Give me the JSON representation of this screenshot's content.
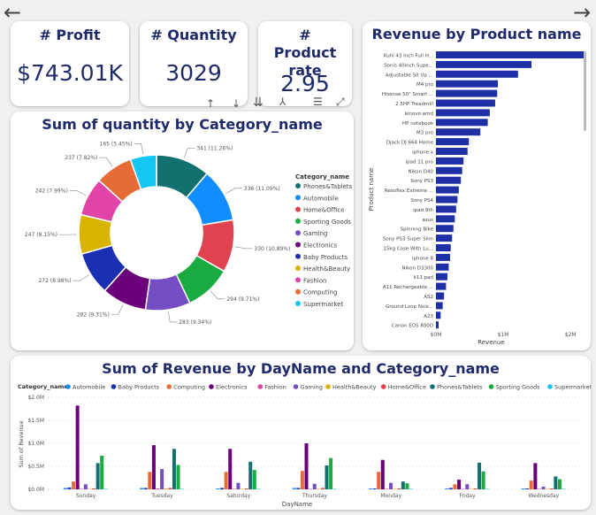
{
  "nav": {
    "back_glyph": "←",
    "forward_glyph": "→"
  },
  "kpis": [
    {
      "title": "# Profit",
      "value": "$743.01K"
    },
    {
      "title": "# Quantity",
      "value": "3029"
    },
    {
      "title": "# Product rate",
      "value": "2.95"
    }
  ],
  "toolbar": {
    "up": "↑",
    "down": "↓",
    "drill": "⇊",
    "expand": "⅄",
    "filter": "☰",
    "focus": "⤢"
  },
  "colors": {
    "Phones&Tablets": "#12706e",
    "Automobile": "#118dff",
    "Home&Office": "#e0434f",
    "Sporting Goods": "#1aab40",
    "Gaming": "#744ec2",
    "Electronics": "#6b007b",
    "Baby Products": "#1b2fb3",
    "Health&Beauty": "#d9b300",
    "Fashion": "#e044a7",
    "Computing": "#e66c37",
    "Supermarket": "#15c6f4",
    "revenue_bar": "#1f2fa6"
  },
  "chart_data": [
    {
      "type": "pie",
      "title": "Sum of quantity by Category_name",
      "legend_title": "Category_name",
      "legend_position": "right",
      "categories": [
        "Phones&Tablets",
        "Automobile",
        "Home&Office",
        "Sporting Goods",
        "Gaming",
        "Electronics",
        "Baby Products",
        "Health&Beauty",
        "Fashion",
        "Computing",
        "Supermarket"
      ],
      "values": [
        341,
        336,
        330,
        294,
        283,
        282,
        272,
        247,
        242,
        237,
        165
      ],
      "labels": [
        "341 (11.26%)",
        "336 (11.09%)",
        "330 (10.89%)",
        "294 (9.71%)",
        "283 (9.34%)",
        "282 (9.31%)",
        "272 (8.98%)",
        "247 (8.15%)",
        "242 (7.99%)",
        "237 (7.82%)",
        "165 (5.45%)"
      ]
    },
    {
      "type": "bar",
      "orientation": "horizontal",
      "title": "Revenue by Product name",
      "xlabel": "Revenue",
      "ylabel": "Product name",
      "xlim": [
        0,
        2300000
      ],
      "xticks": [
        0,
        1000000,
        2000000
      ],
      "xtick_labels": [
        "$0M",
        "$1M",
        "$2M"
      ],
      "categories": [
        "Kuhl 43 Inch Full H...",
        "Sonis 40inch Supe...",
        "Adjustable Sit Up ...",
        "M4 pro",
        "Hisense 50\" Smart ...",
        "2.5HP Treadmill",
        "lenovo amd",
        "HP notebook",
        "M3 pro",
        "Djack DJ 664 Home",
        "iphone x",
        "ipad 11 pro",
        "Nikon D40",
        "Sony PS3",
        "Rexoflex Extreme ...",
        "Sony PS4",
        "ipad 9th",
        "asus",
        "Spinning Bike",
        "Sony PS3 Super Slim",
        "15kg Case With Lu...",
        "iphone 8",
        "Nikon D3300",
        "k11 pad",
        "A11 Rechargeable ...",
        "AS2",
        "Ground Loop Nois...",
        "A23",
        "Canon EOS 800D"
      ],
      "values": [
        2200000,
        1420000,
        1220000,
        920000,
        910000,
        880000,
        800000,
        770000,
        660000,
        490000,
        470000,
        410000,
        390000,
        370000,
        340000,
        320000,
        300000,
        280000,
        260000,
        240000,
        220000,
        210000,
        190000,
        170000,
        150000,
        120000,
        100000,
        70000,
        40000
      ]
    },
    {
      "type": "bar",
      "title": "Sum of Revenue by DayName and Category_name",
      "legend_title": "Category_name",
      "legend_position": "top",
      "xlabel": "DayName",
      "ylabel": "Sum of Revenue",
      "ylim": [
        0,
        2000000
      ],
      "yticks": [
        0,
        500000,
        1000000,
        1500000,
        2000000
      ],
      "ytick_labels": [
        "$0.0M",
        "$0.5M",
        "$1.0M",
        "$1.5M",
        "$2.0M"
      ],
      "categories": [
        "Sunday",
        "Tuesday",
        "Saturday",
        "Thursday",
        "Monday",
        "Friday",
        "Wednesday"
      ],
      "series": [
        {
          "name": "Automobile",
          "values": [
            30000,
            30000,
            20000,
            30000,
            20000,
            20000,
            20000
          ]
        },
        {
          "name": "Baby Products",
          "values": [
            40000,
            30000,
            30000,
            30000,
            20000,
            30000,
            20000
          ]
        },
        {
          "name": "Computing",
          "values": [
            170000,
            380000,
            380000,
            400000,
            380000,
            110000,
            190000
          ]
        },
        {
          "name": "Electronics",
          "values": [
            1820000,
            960000,
            880000,
            1000000,
            640000,
            210000,
            570000
          ]
        },
        {
          "name": "Fashion",
          "values": [
            10000,
            20000,
            10000,
            10000,
            10000,
            10000,
            10000
          ]
        },
        {
          "name": "Gaming",
          "values": [
            110000,
            440000,
            140000,
            120000,
            140000,
            110000,
            60000
          ]
        },
        {
          "name": "Health&Beauty",
          "values": [
            10000,
            20000,
            10000,
            10000,
            10000,
            10000,
            10000
          ]
        },
        {
          "name": "Home&Office",
          "values": [
            20000,
            30000,
            20000,
            30000,
            20000,
            20000,
            20000
          ]
        },
        {
          "name": "Phones&Tablets",
          "values": [
            570000,
            880000,
            600000,
            520000,
            170000,
            580000,
            280000
          ]
        },
        {
          "name": "Sporting Goods",
          "values": [
            730000,
            530000,
            420000,
            680000,
            130000,
            390000,
            220000
          ]
        },
        {
          "name": "Supermarket",
          "values": [
            10000,
            10000,
            10000,
            10000,
            10000,
            10000,
            10000
          ]
        }
      ]
    }
  ]
}
